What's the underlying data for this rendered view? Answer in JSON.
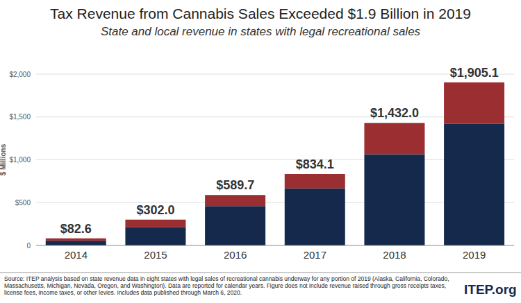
{
  "chart_data": {
    "type": "bar",
    "title": "Tax Revenue from Cannabis Sales Exceeded $1.9 Billion in 2019",
    "subtitle": "State and local revenue in states with legal recreational sales",
    "y_label": "$ Millions",
    "categories": [
      "2014",
      "2015",
      "2016",
      "2017",
      "2018",
      "2019"
    ],
    "series": [
      {
        "color": "#14294b",
        "values": [
          55,
          215,
          460,
          665,
          1065,
          1420
        ]
      },
      {
        "color": "#9a2e31",
        "values": [
          27.6,
          87,
          129.7,
          169.1,
          367,
          485.1
        ]
      }
    ],
    "totals": [
      82.6,
      302.0,
      589.7,
      834.1,
      1432.0,
      1905.1
    ],
    "total_labels": [
      "$82.6",
      "$302.0",
      "$589.7",
      "$834.1",
      "$1,432.0",
      "$1,905.1"
    ],
    "stacked": true,
    "ylim": [
      0,
      2000
    ],
    "yticks": [
      0,
      {
        "value": 500,
        "label": "$500"
      },
      {
        "value": 1000,
        "label": "$1,000"
      },
      {
        "value": 1500,
        "label": "$1,500"
      },
      {
        "value": 2000,
        "label": "$2,000"
      }
    ],
    "grid": true,
    "source": "Source: ITEP analysis based on state revenue data in eight states with legal sales of recreational cannabis underway for any portion of 2019 (Alaska, California, Colorado, Massachusetts, Michigan, Nevada, Oregon, and Washington). Data are reported for calendar years. Figure does not include revenue raised through gross receipts taxes, license fees, income taxes, or other levies. Includes data published through March 6, 2020.",
    "logo": "ITEP.org"
  }
}
